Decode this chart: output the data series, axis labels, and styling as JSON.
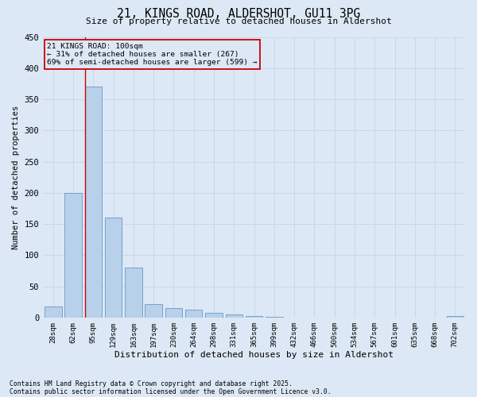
{
  "title_line1": "21, KINGS ROAD, ALDERSHOT, GU11 3PG",
  "title_line2": "Size of property relative to detached houses in Aldershot",
  "xlabel": "Distribution of detached houses by size in Aldershot",
  "ylabel": "Number of detached properties",
  "categories": [
    "28sqm",
    "62sqm",
    "95sqm",
    "129sqm",
    "163sqm",
    "197sqm",
    "230sqm",
    "264sqm",
    "298sqm",
    "331sqm",
    "365sqm",
    "399sqm",
    "432sqm",
    "466sqm",
    "500sqm",
    "534sqm",
    "567sqm",
    "601sqm",
    "635sqm",
    "668sqm",
    "702sqm"
  ],
  "values": [
    18,
    200,
    370,
    160,
    80,
    22,
    15,
    13,
    7,
    5,
    2,
    1,
    0,
    0,
    0,
    0,
    0,
    0,
    0,
    0,
    2
  ],
  "bar_color": "#b8d0ea",
  "bar_edge_color": "#6899c8",
  "grid_color": "#c5d8ec",
  "bg_color": "#dce8f5",
  "vline_color": "#cc0000",
  "vline_index": 2,
  "annotation_text": "21 KINGS ROAD: 100sqm\n← 31% of detached houses are smaller (267)\n69% of semi-detached houses are larger (599) →",
  "annotation_box_color": "#cc0000",
  "ylim": [
    0,
    450
  ],
  "yticks": [
    0,
    50,
    100,
    150,
    200,
    250,
    300,
    350,
    400,
    450
  ],
  "footer_line1": "Contains HM Land Registry data © Crown copyright and database right 2025.",
  "footer_line2": "Contains public sector information licensed under the Open Government Licence v3.0."
}
